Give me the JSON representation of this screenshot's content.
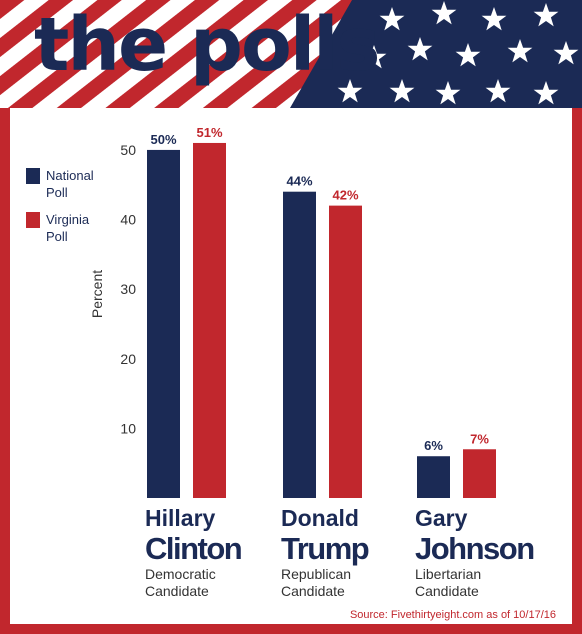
{
  "header": {
    "title": "the polls"
  },
  "colors": {
    "national": "#1b2a55",
    "virginia": "#c1272d",
    "background": "#ffffff"
  },
  "chart_data": {
    "type": "bar",
    "categories": [
      "Hillary Clinton",
      "Donald Trump",
      "Gary Johnson"
    ],
    "candidates": [
      {
        "first": "Hillary",
        "last": "Clinton",
        "party": "Democratic",
        "role": "Candidate"
      },
      {
        "first": "Donald",
        "last": "Trump",
        "party": "Republican",
        "role": "Candidate"
      },
      {
        "first": "Gary",
        "last": "Johnson",
        "party": "Libertarian",
        "role": "Candidate"
      }
    ],
    "series": [
      {
        "name": "National Poll",
        "legend_lines": [
          "National",
          "Poll"
        ],
        "values": [
          50,
          44,
          6
        ],
        "labels": [
          "50%",
          "44%",
          "6%"
        ]
      },
      {
        "name": "Virginia Poll",
        "legend_lines": [
          "Virginia",
          "Poll"
        ],
        "values": [
          51,
          42,
          7
        ],
        "labels": [
          "51%",
          "42%",
          "7%"
        ]
      }
    ],
    "ylabel": "Percent",
    "yticks": [
      10,
      20,
      30,
      40,
      50
    ],
    "ylim": [
      0,
      52
    ],
    "legend_position": "top-left",
    "grid": false,
    "source": "Source: Fivethirtyeight.com as of 10/17/16"
  }
}
